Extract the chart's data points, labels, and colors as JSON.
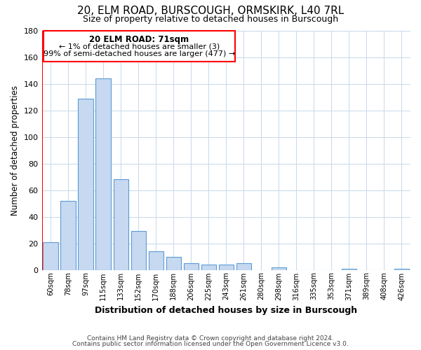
{
  "title": "20, ELM ROAD, BURSCOUGH, ORMSKIRK, L40 7RL",
  "subtitle": "Size of property relative to detached houses in Burscough",
  "xlabel": "Distribution of detached houses by size in Burscough",
  "ylabel": "Number of detached properties",
  "bar_labels": [
    "60sqm",
    "78sqm",
    "97sqm",
    "115sqm",
    "133sqm",
    "152sqm",
    "170sqm",
    "188sqm",
    "206sqm",
    "225sqm",
    "243sqm",
    "261sqm",
    "280sqm",
    "298sqm",
    "316sqm",
    "335sqm",
    "353sqm",
    "371sqm",
    "389sqm",
    "408sqm",
    "426sqm"
  ],
  "bar_values": [
    21,
    52,
    129,
    144,
    68,
    29,
    14,
    10,
    5,
    4,
    4,
    5,
    0,
    2,
    0,
    0,
    0,
    1,
    0,
    0,
    1
  ],
  "bar_color": "#c6d9f0",
  "bar_edge_color": "#5b9bd5",
  "highlight_color": "#ff0000",
  "ylim": [
    0,
    180
  ],
  "yticks": [
    0,
    20,
    40,
    60,
    80,
    100,
    120,
    140,
    160,
    180
  ],
  "annotation_title": "20 ELM ROAD: 71sqm",
  "annotation_line1": "← 1% of detached houses are smaller (3)",
  "annotation_line2": "99% of semi-detached houses are larger (477) →",
  "footer_line1": "Contains HM Land Registry data © Crown copyright and database right 2024.",
  "footer_line2": "Contains public sector information licensed under the Open Government Licence v3.0.",
  "bg_color": "#ffffff",
  "grid_color": "#c8d8ea"
}
